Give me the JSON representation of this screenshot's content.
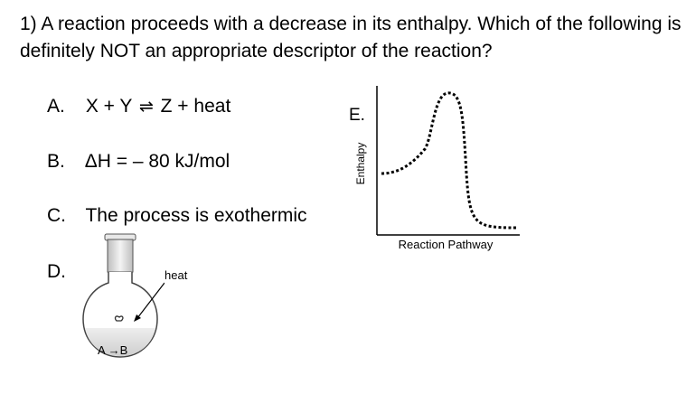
{
  "question": {
    "text": "1) A reaction proceeds with a decrease in its enthalpy.  Which of the following is definitely NOT an appropriate descriptor of the reaction?"
  },
  "options": [
    {
      "letter": "A.",
      "left": "X + Y",
      "arrow": "⇌",
      "right": "Z + heat"
    },
    {
      "letter": "B.",
      "text": "ΔH = – 80 kJ/mol"
    },
    {
      "letter": "C.",
      "text": "The process is exothermic"
    },
    {
      "letter": "D."
    }
  ],
  "graph": {
    "letter": "E.",
    "y_label": "Enthalpy",
    "x_label": "Reaction Pathway"
  },
  "flask": {
    "heat_label": "heat",
    "reaction_label": "A →B"
  }
}
